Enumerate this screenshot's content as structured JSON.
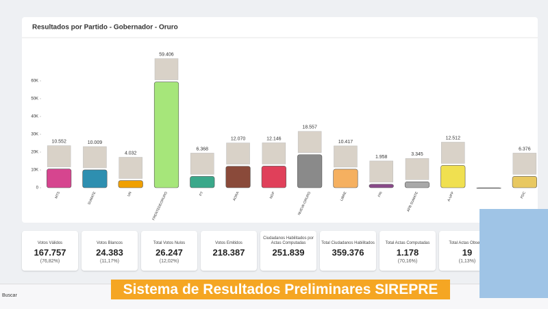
{
  "chart_data": {
    "type": "bar",
    "title": "Resultados por Partido - Gobernador - Oruro",
    "categories": [
      "MTS",
      "SUMATE",
      "UN",
      "FRENTEDEORURO",
      "PT",
      "AORA",
      "NGP",
      "NUEVA-ORURO",
      "LIBRE",
      "FRI",
      "APB SUMATE",
      "A-UPP",
      null,
      "PDC"
    ],
    "values": [
      10552,
      10009,
      4032,
      59406,
      6368,
      12070,
      12146,
      18557,
      10417,
      1958,
      3345,
      12512,
      0,
      6376
    ],
    "value_labels": [
      "10.552",
      "10.009",
      "4.032",
      "59.406",
      "6.368",
      "12.070",
      "12.146",
      "18.557",
      "10.417",
      "1.958",
      "3.345",
      "12.512",
      null,
      "6.376"
    ],
    "colors": [
      "#d6458f",
      "#2e8fb0",
      "#f0a000",
      "#a6e67a",
      "#3aa88a",
      "#8a4a3a",
      "#e0405a",
      "#8a8a8a",
      "#f5b060",
      "#8a4a8a",
      "#a8a8a8",
      "#f0e050",
      "#888888",
      "#e8c860"
    ],
    "ylim": [
      0,
      70000
    ],
    "yticks": [
      0,
      {
        "value": 10000,
        "label": "10K"
      },
      {
        "value": 20000,
        "label": "20K"
      },
      {
        "value": 30000,
        "label": "30K"
      },
      {
        "value": 40000,
        "label": "40K"
      },
      {
        "value": 50000,
        "label": "50K"
      },
      {
        "value": 60000,
        "label": "60K"
      }
    ],
    "grid": false
  },
  "cards": [
    {
      "label": "Votos Válidos",
      "value": "167.757",
      "percent": "(76,82%)"
    },
    {
      "label": "Votos Blancos",
      "value": "24.383",
      "percent": "(11,17%)"
    },
    {
      "label": "Total Votos Nulos",
      "value": "26.247",
      "percent": "(12,02%)"
    },
    {
      "label": "Votos Emitidos",
      "value": "218.387"
    },
    {
      "label": "Ciudadanos Habilitados por Actas Computadas",
      "value": "251.839"
    },
    {
      "label": "Total Ciudadanos Habilitados",
      "value": "359.376"
    },
    {
      "label": "Total Actas Computadas",
      "value": "1.178",
      "percent": "(70,16%)"
    },
    {
      "label": "Total Actas Observa",
      "value": "19",
      "percent": "(1,13%)"
    }
  ],
  "banner": "Sistema de Resultados Preliminares SIREPRE",
  "taskbar": {
    "search": "Buscar"
  }
}
